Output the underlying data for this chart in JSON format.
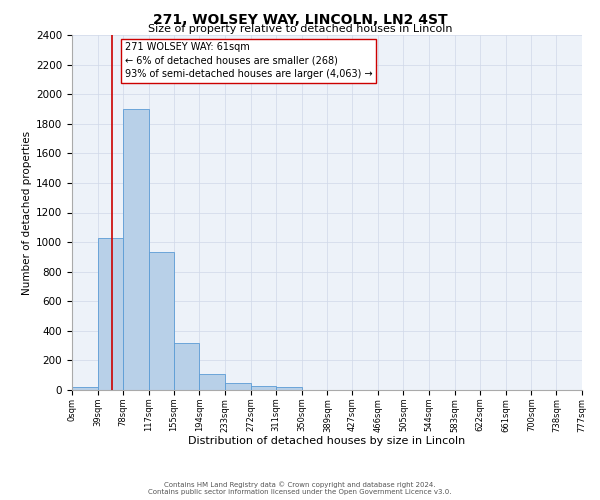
{
  "title": "271, WOLSEY WAY, LINCOLN, LN2 4ST",
  "subtitle": "Size of property relative to detached houses in Lincoln",
  "xlabel": "Distribution of detached houses by size in Lincoln",
  "ylabel": "Number of detached properties",
  "bin_edges": [
    0,
    39,
    78,
    117,
    155,
    194,
    233,
    272,
    311,
    350,
    389,
    427,
    466,
    505,
    544,
    583,
    622,
    661,
    700,
    738,
    777
  ],
  "bar_heights": [
    20,
    1025,
    1900,
    935,
    320,
    105,
    50,
    30,
    20,
    0,
    0,
    0,
    0,
    0,
    0,
    0,
    0,
    0,
    0,
    0
  ],
  "bar_color": "#b8d0e8",
  "bar_edge_color": "#5b9bd5",
  "grid_color": "#d0d8e8",
  "bg_color": "#edf2f9",
  "property_line_x": 61,
  "property_line_color": "#cc0000",
  "annotation_line1": "271 WOLSEY WAY: 61sqm",
  "annotation_line2": "← 6% of detached houses are smaller (268)",
  "annotation_line3": "93% of semi-detached houses are larger (4,063) →",
  "ylim": [
    0,
    2400
  ],
  "yticks": [
    0,
    200,
    400,
    600,
    800,
    1000,
    1200,
    1400,
    1600,
    1800,
    2000,
    2200,
    2400
  ],
  "xtick_labels": [
    "0sqm",
    "39sqm",
    "78sqm",
    "117sqm",
    "155sqm",
    "194sqm",
    "233sqm",
    "272sqm",
    "311sqm",
    "350sqm",
    "389sqm",
    "427sqm",
    "466sqm",
    "505sqm",
    "544sqm",
    "583sqm",
    "622sqm",
    "661sqm",
    "700sqm",
    "738sqm",
    "777sqm"
  ],
  "footer1": "Contains HM Land Registry data © Crown copyright and database right 2024.",
  "footer2": "Contains public sector information licensed under the Open Government Licence v3.0.",
  "title_fontsize": 10,
  "subtitle_fontsize": 8,
  "ylabel_fontsize": 7.5,
  "xlabel_fontsize": 8,
  "ytick_fontsize": 7.5,
  "xtick_fontsize": 6,
  "annot_fontsize": 7,
  "footer_fontsize": 5
}
